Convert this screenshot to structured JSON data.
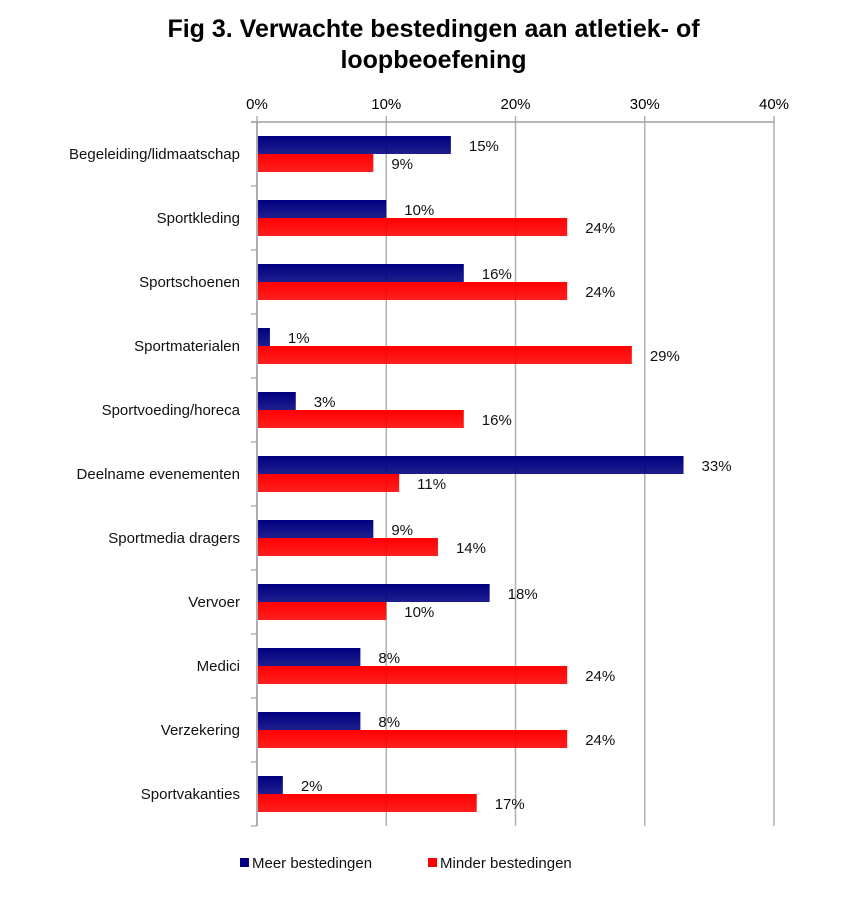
{
  "chart_data": {
    "type": "bar",
    "orientation": "horizontal",
    "title": "Fig 3. Verwachte bestedingen aan atletiek- of loopbeoefening",
    "title_lines": [
      "Fig 3. Verwachte bestedingen aan atletiek- of",
      "loopbeoefening"
    ],
    "xlabel": "",
    "ylabel": "",
    "xlim": [
      0,
      40
    ],
    "x_ticks": [
      0,
      10,
      20,
      30,
      40
    ],
    "x_tick_labels": [
      "0%",
      "10%",
      "20%",
      "30%",
      "40%"
    ],
    "x_axis_position": "top",
    "grid": true,
    "legend_position": "bottom",
    "categories": [
      "Begeleiding/lidmaatschap",
      "Sportkleding",
      "Sportschoenen",
      "Sportmaterialen",
      "Sportvoeding/horeca",
      "Deelname evenementen",
      "Sportmedia dragers",
      "Vervoer",
      "Medici",
      "Verzekering",
      "Sportvakanties"
    ],
    "series": [
      {
        "name": "Meer bestedingen",
        "color": "#000080",
        "values": [
          15,
          10,
          16,
          1,
          3,
          33,
          9,
          18,
          8,
          8,
          2
        ],
        "labels": [
          "15%",
          "10%",
          "16%",
          "1%",
          "3%",
          "33%",
          "9%",
          "18%",
          "8%",
          "8%",
          "2%"
        ]
      },
      {
        "name": "Minder bestedingen",
        "color": "#ff0000",
        "values": [
          9,
          24,
          24,
          29,
          16,
          11,
          14,
          10,
          24,
          24,
          17
        ],
        "labels": [
          "9%",
          "24%",
          "24%",
          "29%",
          "16%",
          "11%",
          "14%",
          "10%",
          "24%",
          "24%",
          "17%"
        ]
      }
    ]
  }
}
